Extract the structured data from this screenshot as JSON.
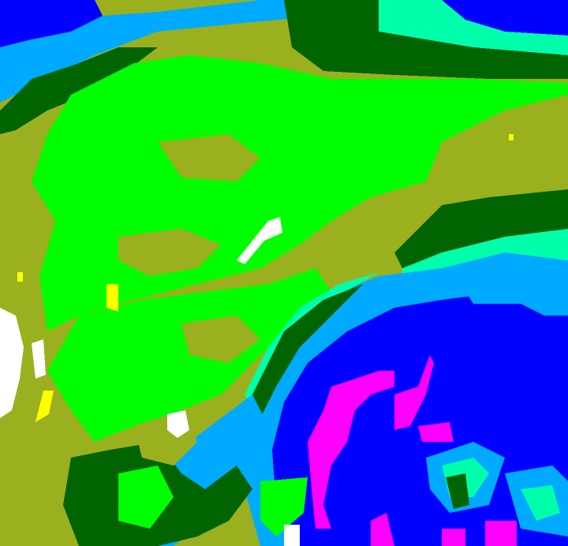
{
  "palette": {
    "olive": "#9bb01e",
    "bright_green": "#00ff00",
    "dark_green": "#006400",
    "aquamarine": "#00ffaa",
    "light_blue": "#00aaff",
    "blue": "#0000ff",
    "magenta": "#ff00ff",
    "white": "#ffffff",
    "yellow": "#ffff00"
  }
}
